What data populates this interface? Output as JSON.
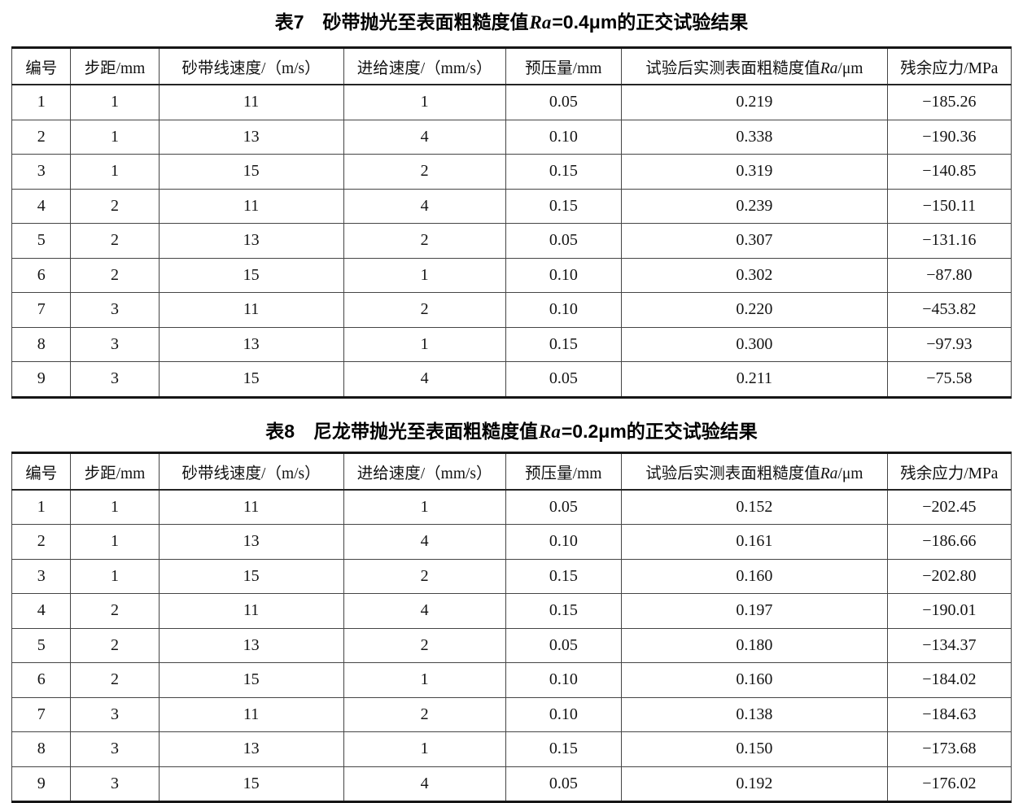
{
  "page": {
    "tables": [
      {
        "id": "table7",
        "title": "表7　砂带抛光至表面粗糙度值*Ra*=0.4μm的正交试验结果",
        "headers": [
          "编号",
          "步距/mm",
          "砂带线速度/（m/s）",
          "进给速度/（mm/s）",
          "预压量/mm",
          "试验后实测表面粗糙度值*Ra*/μm",
          "残余应力/MPa"
        ],
        "rows": [
          [
            "1",
            "1",
            "11",
            "1",
            "0.05",
            "0.219",
            "−185.26"
          ],
          [
            "2",
            "1",
            "13",
            "4",
            "0.10",
            "0.338",
            "−190.36"
          ],
          [
            "3",
            "1",
            "15",
            "2",
            "0.15",
            "0.319",
            "−140.85"
          ],
          [
            "4",
            "2",
            "11",
            "4",
            "0.15",
            "0.239",
            "−150.11"
          ],
          [
            "5",
            "2",
            "13",
            "2",
            "0.05",
            "0.307",
            "−131.16"
          ],
          [
            "6",
            "2",
            "15",
            "1",
            "0.10",
            "0.302",
            "−87.80"
          ],
          [
            "7",
            "3",
            "11",
            "2",
            "0.10",
            "0.220",
            "−453.82"
          ],
          [
            "8",
            "3",
            "13",
            "1",
            "0.15",
            "0.300",
            "−97.93"
          ],
          [
            "9",
            "3",
            "15",
            "4",
            "0.05",
            "0.211",
            "−75.58"
          ]
        ]
      },
      {
        "id": "table8",
        "title": "表8　尼龙带抛光至表面粗糙度值*Ra*=0.2μm的正交试验结果",
        "headers": [
          "编号",
          "步距/mm",
          "砂带线速度/（m/s）",
          "进给速度/（mm/s）",
          "预压量/mm",
          "试验后实测表面粗糙度值*Ra*/μm",
          "残余应力/MPa"
        ],
        "rows": [
          [
            "1",
            "1",
            "11",
            "1",
            "0.05",
            "0.152",
            "−202.45"
          ],
          [
            "2",
            "1",
            "13",
            "4",
            "0.10",
            "0.161",
            "−186.66"
          ],
          [
            "3",
            "1",
            "15",
            "2",
            "0.15",
            "0.160",
            "−202.80"
          ],
          [
            "4",
            "2",
            "11",
            "4",
            "0.15",
            "0.197",
            "−190.01"
          ],
          [
            "5",
            "2",
            "13",
            "2",
            "0.05",
            "0.180",
            "−134.37"
          ],
          [
            "6",
            "2",
            "15",
            "1",
            "0.10",
            "0.160",
            "−184.02"
          ],
          [
            "7",
            "3",
            "11",
            "2",
            "0.10",
            "0.138",
            "−184.63"
          ],
          [
            "8",
            "3",
            "13",
            "1",
            "0.15",
            "0.150",
            "−173.68"
          ],
          [
            "9",
            "3",
            "15",
            "4",
            "0.05",
            "0.192",
            "−176.02"
          ]
        ]
      }
    ]
  },
  "colors": {
    "background": "#ffffff",
    "text": "#141414",
    "border_heavy": "#161616",
    "border_light": "#454545"
  }
}
